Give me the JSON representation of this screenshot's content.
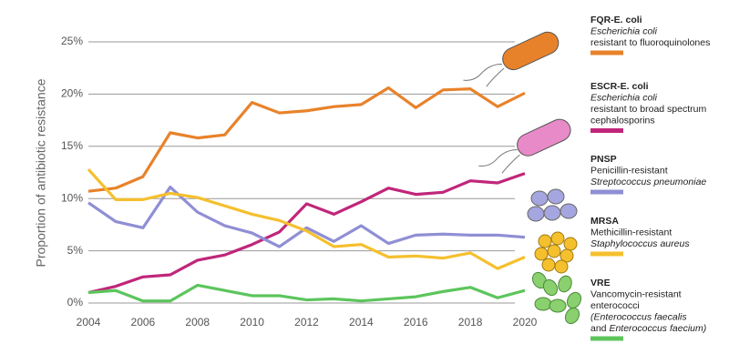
{
  "chart_data": {
    "type": "line",
    "y_label": "Proportion of antibiotic resistance",
    "x": [
      2004,
      2005,
      2006,
      2007,
      2008,
      2009,
      2010,
      2011,
      2012,
      2013,
      2014,
      2015,
      2016,
      2017,
      2018,
      2019,
      2020
    ],
    "xlim": [
      2004,
      2020
    ],
    "xticks": [
      2004,
      2006,
      2008,
      2010,
      2012,
      2014,
      2016,
      2018,
      2020
    ],
    "ylim": [
      0,
      25
    ],
    "yticks": [
      {
        "value": 0,
        "label": "0%"
      },
      {
        "value": 5,
        "label": "5%"
      },
      {
        "value": 10,
        "label": "10%"
      },
      {
        "value": 15,
        "label": "15%"
      },
      {
        "value": 20,
        "label": "20%"
      },
      {
        "value": 25,
        "label": "25%"
      }
    ],
    "grid": true,
    "series": [
      {
        "name": "FQR-E. coli",
        "color": "#e8822a",
        "description": [
          [
            {
              "text": "Escherichia coli",
              "italic": true
            }
          ],
          [
            {
              "text": "resistant to fluoroquinolones",
              "italic": false
            }
          ]
        ],
        "values": [
          10.7,
          11.0,
          12.1,
          16.3,
          15.8,
          16.1,
          19.2,
          18.2,
          18.4,
          18.8,
          19.0,
          20.6,
          18.7,
          20.4,
          20.5,
          18.8,
          20.1
        ]
      },
      {
        "name": "ESCR-E. coli",
        "color": "#c0267a",
        "description": [
          [
            {
              "text": "Escherichia coli",
              "italic": true
            }
          ],
          [
            {
              "text": "resistant to broad spectrum",
              "italic": false
            }
          ],
          [
            {
              "text": "cephalosporins",
              "italic": false
            }
          ]
        ],
        "values": [
          1.0,
          1.6,
          2.5,
          2.7,
          4.1,
          4.6,
          5.6,
          6.8,
          9.5,
          8.5,
          9.7,
          11.0,
          10.4,
          10.6,
          11.7,
          11.5,
          12.4
        ]
      },
      {
        "name": "PNSP",
        "color": "#8f8fd4",
        "description": [
          [
            {
              "text": "Penicillin-resistant",
              "italic": false
            }
          ],
          [
            {
              "text": "Streptococcus pneumoniae",
              "italic": true
            }
          ]
        ],
        "values": [
          9.6,
          7.8,
          7.2,
          11.1,
          8.7,
          7.4,
          6.7,
          5.4,
          7.2,
          5.9,
          7.4,
          5.7,
          6.5,
          6.6,
          6.5,
          6.5,
          6.3
        ]
      },
      {
        "name": "MRSA",
        "color": "#f5c02e",
        "description": [
          [
            {
              "text": "Methicillin-resistant",
              "italic": false
            }
          ],
          [
            {
              "text": "Staphylococcus aureus",
              "italic": true
            }
          ]
        ],
        "values": [
          12.8,
          9.9,
          9.9,
          10.5,
          10.1,
          9.3,
          8.5,
          7.9,
          6.9,
          5.4,
          5.6,
          4.4,
          4.5,
          4.3,
          4.8,
          3.3,
          4.4
        ]
      },
      {
        "name": "VRE",
        "color": "#5cc55c",
        "description": [
          [
            {
              "text": "Vancomycin-resistant",
              "italic": false
            }
          ],
          [
            {
              "text": "enterococci",
              "italic": false
            }
          ],
          [
            {
              "text": "(Enterococcus faecalis",
              "italic": true
            }
          ],
          [
            {
              "text": "and ",
              "italic": false
            },
            {
              "text": "Enterococcus faecium)",
              "italic": true
            }
          ]
        ],
        "values": [
          1.0,
          1.2,
          0.2,
          0.2,
          1.7,
          1.2,
          0.7,
          0.7,
          0.3,
          0.4,
          0.2,
          0.4,
          0.6,
          1.1,
          1.5,
          0.5,
          1.2
        ]
      }
    ]
  }
}
